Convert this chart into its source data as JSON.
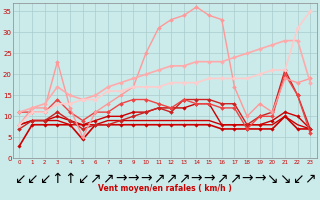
{
  "xlabel": "Vent moyen/en rafales ( km/h )",
  "background_color": "#cbeaea",
  "grid_color": "#aacccc",
  "xlim": [
    -0.5,
    23.5
  ],
  "ylim": [
    0,
    37
  ],
  "yticks": [
    0,
    5,
    10,
    15,
    20,
    25,
    30,
    35
  ],
  "xticks": [
    0,
    1,
    2,
    3,
    4,
    5,
    6,
    7,
    8,
    9,
    10,
    11,
    12,
    13,
    14,
    15,
    16,
    17,
    18,
    19,
    20,
    21,
    22,
    23
  ],
  "series": [
    {
      "x": [
        0,
        1,
        2,
        3,
        4,
        5,
        6,
        7,
        8,
        9,
        10,
        11,
        12,
        13,
        14,
        15,
        16,
        17,
        18,
        19,
        20,
        21,
        22,
        23
      ],
      "y": [
        3,
        8,
        8,
        8,
        8,
        4.5,
        8,
        8,
        8,
        8,
        8,
        8,
        8,
        8,
        8,
        8,
        7,
        7,
        7,
        7,
        7,
        10,
        7,
        7
      ],
      "color": "#cc0000",
      "lw": 1.2,
      "marker": "D",
      "ms": 1.8
    },
    {
      "x": [
        0,
        1,
        2,
        3,
        4,
        5,
        6,
        7,
        8,
        9,
        10,
        11,
        12,
        13,
        14,
        15,
        16,
        17,
        18,
        19,
        20,
        21,
        22,
        23
      ],
      "y": [
        8,
        9,
        9,
        9,
        8,
        8,
        8,
        9,
        9,
        9,
        9,
        9,
        9,
        9,
        9,
        9,
        8,
        8,
        8,
        8,
        8,
        10,
        8,
        7
      ],
      "color": "#cc0000",
      "lw": 1.0,
      "marker": null,
      "ms": 0
    },
    {
      "x": [
        0,
        1,
        2,
        3,
        4,
        5,
        6,
        7,
        8,
        9,
        10,
        11,
        12,
        13,
        14,
        15,
        16,
        17,
        18,
        19,
        20,
        21,
        22,
        23
      ],
      "y": [
        8,
        9,
        9,
        10,
        9,
        8,
        9,
        10,
        10,
        11,
        11,
        12,
        12,
        12,
        13,
        13,
        8,
        8,
        8,
        8,
        9,
        11,
        10,
        7
      ],
      "color": "#cc0000",
      "lw": 1.0,
      "marker": "D",
      "ms": 1.8
    },
    {
      "x": [
        0,
        1,
        2,
        3,
        4,
        5,
        6,
        7,
        8,
        9,
        10,
        11,
        12,
        13,
        14,
        15,
        16,
        17,
        18,
        19,
        20,
        21,
        22,
        23
      ],
      "y": [
        7,
        9,
        9,
        11,
        9,
        7,
        8,
        8,
        9,
        10,
        11,
        12,
        11,
        14,
        14,
        14,
        13,
        13,
        8,
        10,
        11,
        21,
        15,
        7
      ],
      "color": "#cc2222",
      "lw": 1.0,
      "marker": "D",
      "ms": 2.0
    },
    {
      "x": [
        0,
        1,
        2,
        3,
        4,
        5,
        6,
        7,
        8,
        9,
        10,
        11,
        12,
        13,
        14,
        15,
        16,
        17,
        18,
        19,
        20,
        21,
        22,
        23
      ],
      "y": [
        11,
        11,
        11,
        14,
        11,
        9,
        11,
        11,
        13,
        14,
        14,
        13,
        12,
        14,
        13,
        13,
        12,
        12,
        7,
        10,
        10,
        20,
        15,
        6
      ],
      "color": "#ee4444",
      "lw": 1.0,
      "marker": "D",
      "ms": 2.0
    },
    {
      "x": [
        0,
        1,
        2,
        3,
        4,
        5,
        6,
        7,
        8,
        9,
        10,
        11,
        12,
        13,
        14,
        15,
        16,
        17,
        18,
        19,
        20,
        21,
        22,
        23
      ],
      "y": [
        8,
        12,
        12,
        23,
        12,
        5,
        11,
        13,
        15,
        17,
        25,
        31,
        33,
        34,
        36,
        34,
        33,
        17,
        10,
        13,
        11,
        19,
        18,
        19
      ],
      "color": "#ff9999",
      "lw": 1.0,
      "marker": "D",
      "ms": 2.0
    },
    {
      "x": [
        0,
        1,
        2,
        3,
        4,
        5,
        6,
        7,
        8,
        9,
        10,
        11,
        12,
        13,
        14,
        15,
        16,
        17,
        18,
        19,
        20,
        21,
        22,
        23
      ],
      "y": [
        11,
        12,
        13,
        17,
        15,
        14,
        15,
        17,
        18,
        19,
        20,
        21,
        22,
        22,
        23,
        23,
        23,
        24,
        25,
        26,
        27,
        28,
        28,
        18
      ],
      "color": "#ffaaaa",
      "lw": 1.2,
      "marker": "D",
      "ms": 2.0
    },
    {
      "x": [
        0,
        1,
        2,
        3,
        4,
        5,
        6,
        7,
        8,
        9,
        10,
        11,
        12,
        13,
        14,
        15,
        16,
        17,
        18,
        19,
        20,
        21,
        22,
        23
      ],
      "y": [
        8,
        11,
        11,
        13,
        13,
        14,
        14,
        16,
        16,
        17,
        17,
        17,
        18,
        18,
        18,
        19,
        19,
        19,
        19,
        20,
        21,
        21,
        31,
        35
      ],
      "color": "#ffcccc",
      "lw": 1.2,
      "marker": "D",
      "ms": 2.0
    }
  ],
  "wind_arrows": [
    "↙",
    "↙",
    "↙",
    "↑",
    "↑",
    "↙",
    "↗",
    "↗",
    "→",
    "→",
    "→",
    "↗",
    "↗",
    "↗",
    "→",
    "→",
    "↗",
    "↗",
    "→",
    "→",
    "↘",
    "↘",
    "↙",
    "↗"
  ]
}
